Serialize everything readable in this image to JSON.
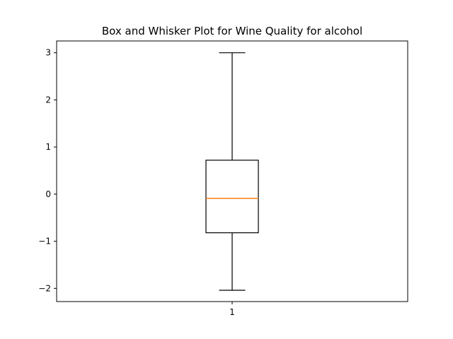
{
  "chart_data": {
    "type": "box",
    "title": "Box and Whisker Plot for Wine Quality for alcohol",
    "xlabel": "",
    "ylabel": "",
    "categories": [
      "1"
    ],
    "y_ticks": [
      -2,
      -1,
      0,
      1,
      2,
      3
    ],
    "y_tick_labels": [
      "−2",
      "−1",
      "0",
      "1",
      "2",
      "3"
    ],
    "ylim": [
      -2.28,
      3.25
    ],
    "boxes": [
      {
        "category": "1",
        "whisker_low": -2.04,
        "q1": -0.82,
        "median": -0.09,
        "q3": 0.72,
        "whisker_high": 3.0
      }
    ],
    "colors": {
      "box": "#000000",
      "median": "#ff7f0e"
    },
    "grid": false
  }
}
